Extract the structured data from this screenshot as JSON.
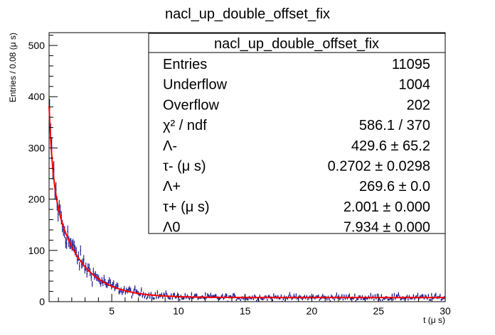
{
  "chart_data": {
    "type": "scatter",
    "title": "nacl_up_double_offset_fix",
    "xlabel": "t (μ s)",
    "ylabel": "Entries / 0.08 (μ s)",
    "xlim": [
      0.3,
      30
    ],
    "ylim": [
      0,
      525
    ],
    "x_ticks": [
      "5",
      "10",
      "15",
      "20",
      "25",
      "30"
    ],
    "y_ticks": [
      "0",
      "100",
      "200",
      "300",
      "400",
      "500"
    ],
    "bin_width": 0.08,
    "grid": false,
    "series": [
      {
        "kind": "histogram-points",
        "color": "#000080"
      },
      {
        "kind": "fit-curve",
        "color": "#ff0000",
        "function": "L_minus*exp(-t/tau_minus) + L_plus*exp(-t/tau_plus) + L_0"
      }
    ],
    "fit_params": {
      "L_minus": 429.6,
      "tau_minus": 0.2702,
      "L_plus": 269.6,
      "tau_plus": 2.001,
      "L_0": 7.934
    }
  },
  "stats_box": {
    "title": "nacl_up_double_offset_fix",
    "rows": [
      {
        "label": "Entries",
        "value": "11095"
      },
      {
        "label": "Underflow",
        "value": "1004"
      },
      {
        "label": "Overflow",
        "value": "202"
      },
      {
        "label": "χ² / ndf",
        "value": "586.1 / 370"
      },
      {
        "label": "Λ-",
        "value": "429.6 ± 65.2"
      },
      {
        "label": "τ- (μ s)",
        "value": "0.2702 ± 0.0298"
      },
      {
        "label": "Λ+",
        "value": "269.6 ± 0.0"
      },
      {
        "label": "τ+ (μ s)",
        "value": "2.001 ± 0.000"
      },
      {
        "label": "Λ0",
        "value": "7.934 ± 0.000"
      }
    ]
  }
}
